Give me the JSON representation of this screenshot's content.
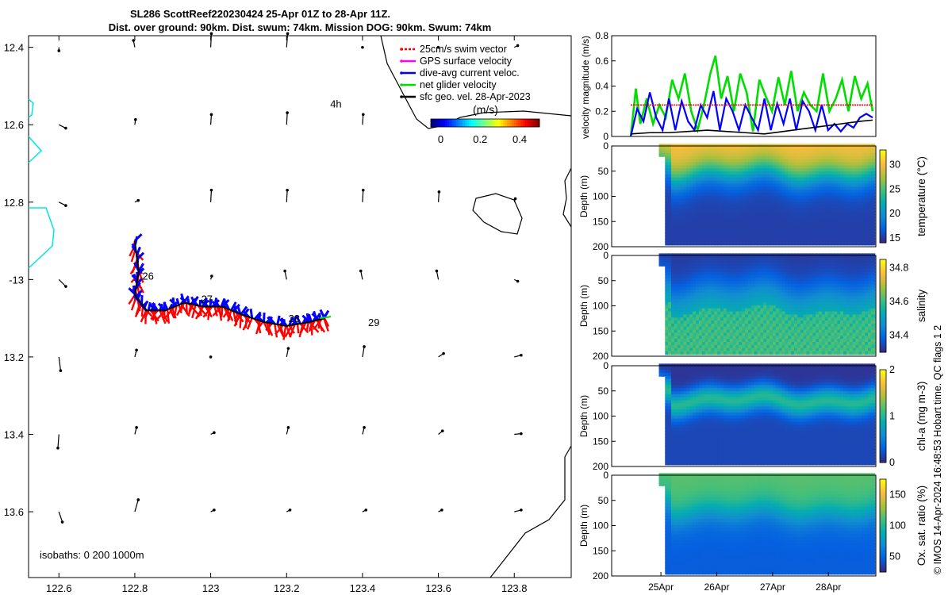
{
  "title_line1": "SL286 ScottReef220230424 25-Apr 01Z to 28-Apr 11Z.",
  "title_line2": "Dist. over ground: 90km. Dist. swum: 74km. Mission DOG: 90km. Swum: 74km",
  "footer_vertical": "© IMOS 14-Apr-2024 16:48:53 Hobart time. QC flags 1  2",
  "isobaths_label": "isobaths: 0   200  1000m",
  "colors": {
    "swim": "#ff0000",
    "gps": "#ff00ff",
    "dive": "#0000ff",
    "net": "#00dd00",
    "geo": "#000000",
    "track": "#0000ff",
    "isobath_shallow": "#00e5e5"
  },
  "chart_data": [
    {
      "type": "scatter",
      "name": "map",
      "title": "SL286 ScottReef220230424 25-Apr 01Z to 28-Apr 11Z.",
      "xlim": [
        122.52,
        123.95
      ],
      "ylim": [
        -13.77,
        -12.37
      ],
      "x_ticks": [
        122.6,
        122.8,
        123,
        123.2,
        123.4,
        123.6,
        123.8
      ],
      "x_tick_labels": [
        "122.6",
        "122.8",
        "123",
        "123.2",
        "123.4",
        "123.6",
        "123.8"
      ],
      "y_ticks": [
        -12.4,
        -12.6,
        -12.8,
        -13,
        -13.2,
        -13.4,
        -13.6
      ],
      "y_tick_labels": [
        "12.4",
        "12.6",
        "12.8",
        "-13",
        "13.2",
        "13.4",
        "13.6"
      ],
      "track": [
        [
          122.8,
          -12.9
        ],
        [
          122.81,
          -12.98
        ],
        [
          122.8,
          -13.04
        ],
        [
          122.83,
          -13.08
        ],
        [
          122.88,
          -13.08
        ],
        [
          122.93,
          -13.06
        ],
        [
          122.98,
          -13.07
        ],
        [
          123.03,
          -13.07
        ],
        [
          123.08,
          -13.09
        ],
        [
          123.14,
          -13.11
        ],
        [
          123.2,
          -13.12
        ],
        [
          123.26,
          -13.11
        ],
        [
          123.3,
          -13.1
        ]
      ],
      "day_labels": [
        {
          "text": "26",
          "lon": 122.835,
          "lat": -13.0
        },
        {
          "text": "27",
          "lon": 122.99,
          "lat": -13.06
        },
        {
          "text": "28",
          "lon": 123.22,
          "lat": -13.11
        },
        {
          "text": "29",
          "lon": 123.43,
          "lat": -13.12
        },
        {
          "text": "4h",
          "lon": 123.33,
          "lat": -12.555
        }
      ],
      "legend": [
        {
          "label": "25cm/s swim vector",
          "color": "#ff0000"
        },
        {
          "label": "GPS surface velocity",
          "color": "#ff00ff"
        },
        {
          "label": "dive-avg current veloc.",
          "color": "#0000ff"
        },
        {
          "label": "net glider velocity",
          "color": "#00dd00"
        },
        {
          "label": "sfc geo. vel. 28-Apr-2023",
          "color": "#000000"
        }
      ],
      "colorbar": {
        "label": "(m/s)",
        "ticks": [
          0,
          0.2,
          0.4
        ],
        "tick_labels": [
          "0",
          "0.2",
          "0.4"
        ],
        "range": [
          -0.05,
          0.5
        ]
      },
      "geo_lons": [
        122.6,
        122.8,
        123.0,
        123.2,
        123.4,
        123.6,
        123.8
      ],
      "geo_lats": [
        -12.4,
        -12.6,
        -12.8,
        -13.0,
        -13.2,
        -13.4,
        -13.6
      ],
      "geo_vectors": [
        [
          [
            0,
            -0.01
          ],
          [
            -0.004,
            0.02
          ],
          [
            0.002,
            0.04
          ],
          [
            0.003,
            0.04
          ],
          [
            0,
            0
          ],
          [
            0,
            0
          ],
          [
            0.01,
            0.005
          ]
        ],
        [
          [
            0.02,
            -0.01
          ],
          [
            0.002,
            0.015
          ],
          [
            0.002,
            0.03
          ],
          [
            0.002,
            0.035
          ],
          [
            0.002,
            0.03
          ],
          [
            0,
            0
          ],
          [
            0,
            0
          ]
        ],
        [
          [
            0.02,
            -0.01
          ],
          [
            0.01,
            0.005
          ],
          [
            0.002,
            0.035
          ],
          [
            0.002,
            0.035
          ],
          [
            0.002,
            0.035
          ],
          [
            0.002,
            0.03
          ],
          [
            0.003,
            0.01
          ]
        ],
        [
          [
            0.02,
            -0.02
          ],
          [
            0,
            0
          ],
          [
            0.003,
            0.01
          ],
          [
            -0.005,
            0.025
          ],
          [
            -0.005,
            0.025
          ],
          [
            -0.005,
            0.025
          ],
          [
            0.01,
            -0.005
          ]
        ],
        [
          [
            0.005,
            -0.04
          ],
          [
            0.005,
            0.02
          ],
          [
            0,
            0
          ],
          [
            0.005,
            0.025
          ],
          [
            0.005,
            0.03
          ],
          [
            0.015,
            0.01
          ],
          [
            0.02,
            0.005
          ]
        ],
        [
          [
            -0.003,
            -0.04
          ],
          [
            0.005,
            0.02
          ],
          [
            0.01,
            0.005
          ],
          [
            0.005,
            0.02
          ],
          [
            0.005,
            0.02
          ],
          [
            0.012,
            0.01
          ],
          [
            0.02,
            0.002
          ]
        ],
        [
          [
            0.01,
            -0.03
          ],
          [
            0.01,
            0.035
          ],
          [
            0.01,
            0.005
          ],
          [
            0.01,
            0.005
          ],
          [
            0.01,
            0.005
          ],
          [
            0.01,
            0.005
          ],
          [
            0.02,
            0.005
          ]
        ]
      ]
    },
    {
      "type": "line",
      "name": "velocity",
      "ylabel": "velocity magnitude (m/s)",
      "ylim": [
        0,
        0.8
      ],
      "yticks": [
        0,
        0.2,
        0.4,
        0.6,
        0.8
      ],
      "xlim": [
        24.7,
        28.85
      ],
      "series": [
        {
          "name": "net glider velocity",
          "color": "#00dd00",
          "x": [
            25.0,
            25.08,
            25.15,
            25.25,
            25.35,
            25.45,
            25.55,
            25.65,
            25.75,
            25.85,
            25.95,
            26.05,
            26.15,
            26.25,
            26.33,
            26.42,
            26.52,
            26.62,
            26.72,
            26.82,
            26.92,
            27.02,
            27.12,
            27.22,
            27.32,
            27.42,
            27.52,
            27.62,
            27.72,
            27.82,
            27.92,
            28.02,
            28.12,
            28.22,
            28.32,
            28.42,
            28.52,
            28.62,
            28.72,
            28.8
          ],
          "y": [
            0.0,
            0.38,
            0.1,
            0.3,
            0.1,
            0.25,
            0.15,
            0.45,
            0.3,
            0.5,
            0.2,
            0.05,
            0.25,
            0.5,
            0.64,
            0.3,
            0.48,
            0.2,
            0.5,
            0.35,
            0.04,
            0.45,
            0.32,
            0.2,
            0.47,
            0.25,
            0.52,
            0.2,
            0.35,
            0.25,
            0.2,
            0.5,
            0.2,
            0.3,
            0.45,
            0.2,
            0.48,
            0.3,
            0.42,
            0.2
          ]
        },
        {
          "name": "dive-avg current veloc.",
          "color": "#0000ff",
          "x": [
            25.0,
            25.1,
            25.2,
            25.3,
            25.4,
            25.5,
            25.6,
            25.7,
            25.8,
            25.9,
            26.0,
            26.1,
            26.2,
            26.3,
            26.4,
            26.5,
            26.6,
            26.7,
            26.8,
            26.9,
            27.0,
            27.1,
            27.2,
            27.3,
            27.4,
            27.5,
            27.6,
            27.7,
            27.8,
            27.9,
            28.0,
            28.1,
            28.2,
            28.3,
            28.4,
            28.5,
            28.6,
            28.7,
            28.8
          ],
          "y": [
            0.0,
            0.22,
            0.12,
            0.35,
            0.15,
            0.05,
            0.3,
            0.05,
            0.28,
            0.12,
            0.05,
            0.25,
            0.15,
            0.36,
            0.05,
            0.3,
            0.2,
            0.05,
            0.25,
            0.15,
            0.05,
            0.3,
            0.05,
            0.26,
            0.1,
            0.3,
            0.05,
            0.28,
            0.2,
            0.05,
            0.25,
            0.05,
            0.1,
            0.04,
            0.1,
            0.07,
            0.15,
            0.18,
            0.15
          ]
        },
        {
          "name": "25cm/s swim vector",
          "color": "#ff0000",
          "x": [
            25.0,
            25.1,
            28.8
          ],
          "y": [
            0.25,
            0.25,
            0.25
          ]
        },
        {
          "name": "sfc geo. vel.",
          "color": "#000000",
          "x": [
            25.0,
            25.3,
            25.6,
            25.9,
            26.2,
            26.5,
            26.8,
            27.1,
            27.4,
            27.7,
            28.0,
            28.3,
            28.6,
            28.8
          ],
          "y": [
            0.02,
            0.03,
            0.03,
            0.04,
            0.05,
            0.04,
            0.03,
            0.02,
            0.04,
            0.06,
            0.08,
            0.1,
            0.12,
            0.13
          ]
        }
      ]
    },
    {
      "type": "heatmap",
      "name": "temperature",
      "ylabel": "Depth (m)",
      "cbar_label": "temperature (°C)",
      "cbar_ticks": [
        15,
        20,
        25,
        30
      ],
      "clim": [
        14,
        33
      ],
      "ylim": [
        0,
        200
      ],
      "yticks": [
        0,
        50,
        100,
        150,
        200
      ],
      "surface_value": 30.5,
      "deep_value": 15,
      "mld": 55,
      "amplitude": 28,
      "thickness": 70
    },
    {
      "type": "heatmap",
      "name": "salinity",
      "ylabel": "Depth (m)",
      "cbar_label": "salinity",
      "cbar_ticks": [
        34.4,
        34.6,
        34.8
      ],
      "clim": [
        34.3,
        34.85
      ],
      "ylim": [
        0,
        200
      ],
      "yticks": [
        0,
        50,
        100,
        150,
        200
      ],
      "surface_value": 34.32,
      "deep_value": 34.55,
      "mld": 70,
      "amplitude": 30,
      "thickness": 80
    },
    {
      "type": "heatmap",
      "name": "chlorophyll",
      "ylabel": "Depth (m)",
      "cbar_label": "chl-a (mg m-3)",
      "cbar_ticks": [
        0,
        1,
        2
      ],
      "clim": [
        0,
        2
      ],
      "ylim": [
        0,
        200
      ],
      "yticks": [
        0,
        50,
        100,
        150,
        200
      ],
      "surface_value": 0.05,
      "deep_value": 0.1,
      "peak_value": 1.0,
      "mld": 70,
      "amplitude": 22,
      "thickness": 25
    },
    {
      "type": "heatmap",
      "name": "oxygen",
      "ylabel": "Depth (m)",
      "cbar_label": "Ox. sat. ratio (%)",
      "cbar_ticks": [
        50,
        100,
        150
      ],
      "clim": [
        25,
        175
      ],
      "ylim": [
        0,
        200
      ],
      "yticks": [
        0,
        50,
        100,
        150,
        200
      ],
      "surface_value": 115,
      "deep_value": 45,
      "mld": 75,
      "amplitude": 22,
      "thickness": 70
    }
  ],
  "time_axis": {
    "ticks": [
      25,
      26,
      27,
      28
    ],
    "labels": [
      "25Apr",
      "26Apr",
      "27Apr",
      "28Apr"
    ]
  }
}
